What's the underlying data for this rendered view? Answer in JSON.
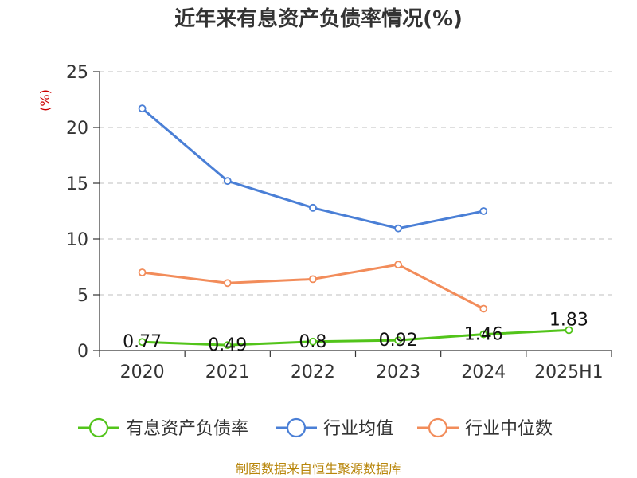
{
  "chart_data": {
    "type": "line",
    "title": "近年来有息资产负债率情况(%)",
    "ylabel": "(%)",
    "categories": [
      "2020",
      "2021",
      "2022",
      "2023",
      "2024",
      "2025H1"
    ],
    "ylim": [
      0,
      25
    ],
    "yticks": [
      0,
      5,
      10,
      15,
      20,
      25
    ],
    "grid": true,
    "legend_position": "bottom",
    "series": [
      {
        "name": "有息资产负债率",
        "color": "#52c41a",
        "values": [
          0.77,
          0.49,
          0.8,
          0.92,
          1.46,
          1.83
        ],
        "labels": [
          "0.77",
          "0.49",
          "0.8",
          "0.92",
          "1.46",
          "1.83"
        ]
      },
      {
        "name": "行业均值",
        "color": "#4a7fd6",
        "values": [
          21.7,
          15.2,
          12.8,
          10.95,
          12.5,
          null
        ]
      },
      {
        "name": "行业中位数",
        "color": "#f28c5a",
        "values": [
          7.0,
          6.05,
          6.4,
          7.7,
          3.75,
          null
        ]
      }
    ]
  },
  "source": "制图数据来自恒生聚源数据库"
}
